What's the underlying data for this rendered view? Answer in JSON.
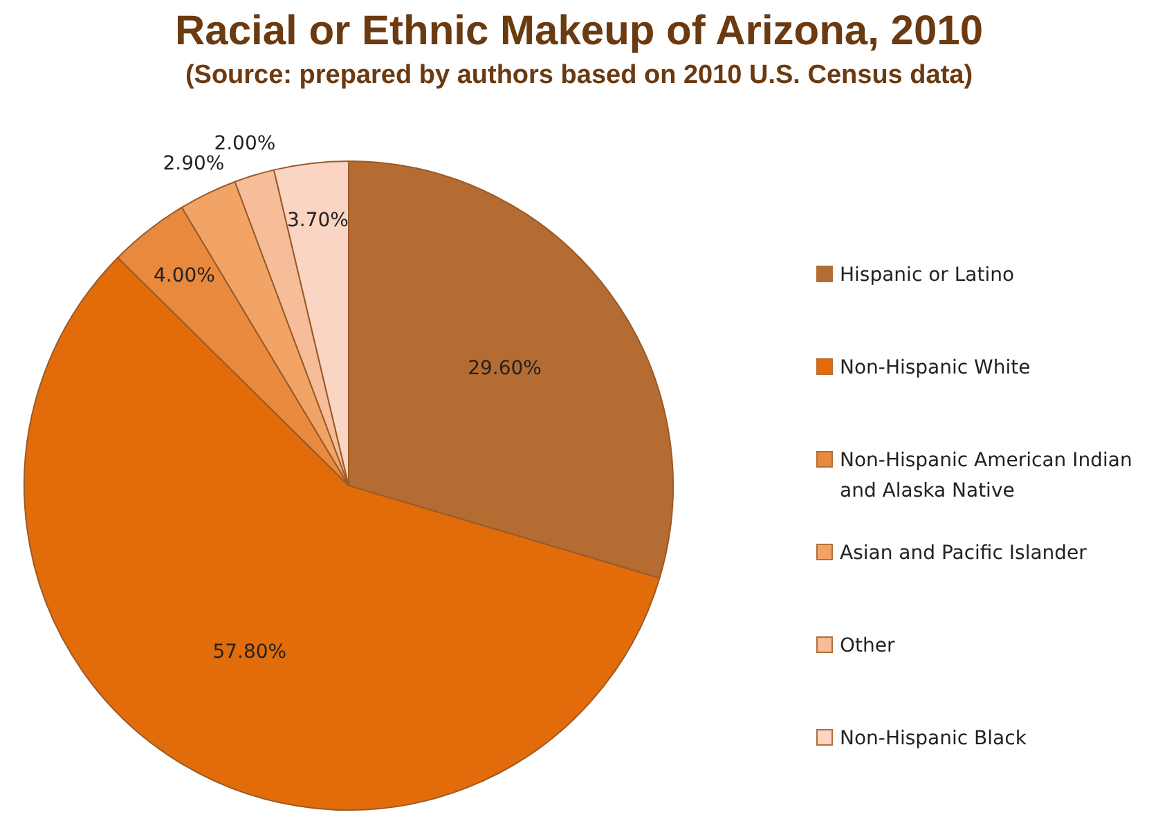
{
  "chart_data": {
    "type": "pie",
    "title": "Racial or Ethnic Makeup of Arizona, 2010",
    "subtitle": "(Source: prepared by authors based on 2010 U.S. Census data)",
    "categories": [
      "Hispanic or Latino",
      "Non-Hispanic White",
      "Non-Hispanic American Indian and Alaska Native",
      "Asian and Pacific Islander",
      "Other",
      "Non-Hispanic Black"
    ],
    "values": [
      29.6,
      57.8,
      4.0,
      2.9,
      2.0,
      3.7
    ],
    "value_labels": [
      "29.60%",
      "57.80%",
      "4.00%",
      "2.90%",
      "2.00%",
      "3.70%"
    ],
    "colors": [
      "#b46c32",
      "#e36c0a",
      "#e8893e",
      "#f2a466",
      "#f6bd98",
      "#fad5c3"
    ],
    "legend": "right"
  }
}
